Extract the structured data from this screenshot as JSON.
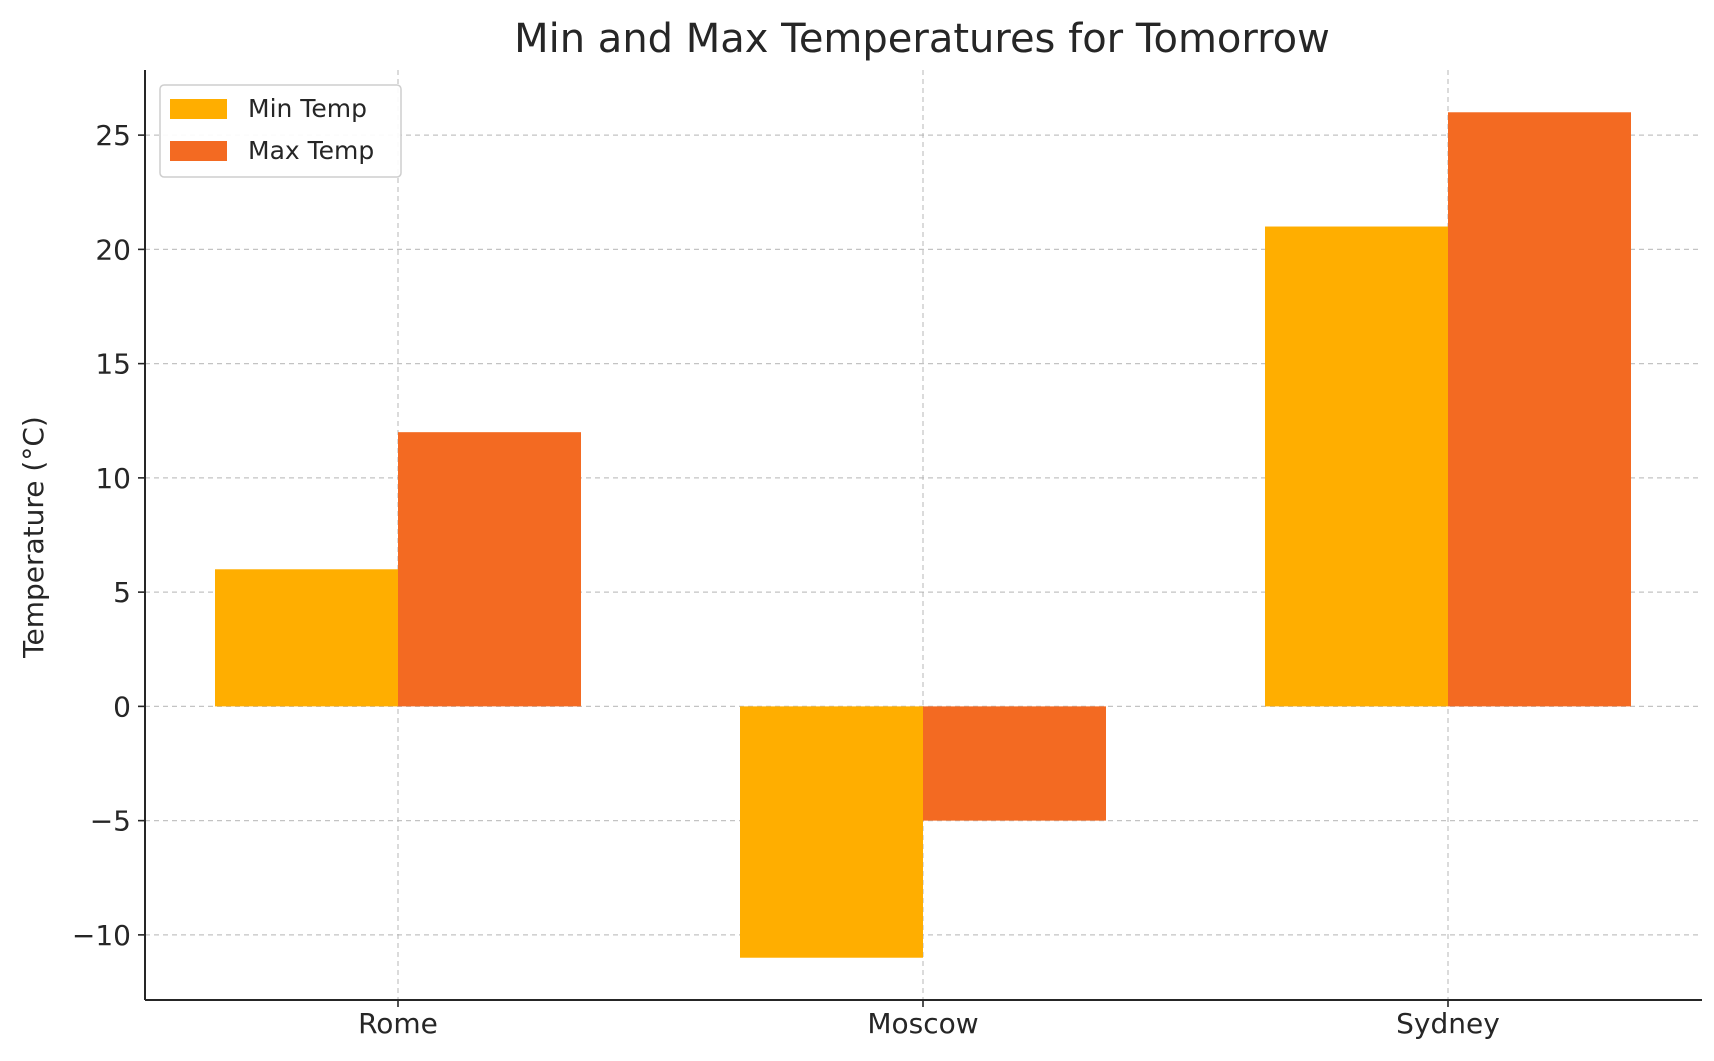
{
  "chart_data": {
    "type": "bar",
    "title": "Min and Max Temperatures for Tomorrow",
    "xlabel": "",
    "ylabel": "Temperature (°C)",
    "categories": [
      "Rome",
      "Moscow",
      "Sydney"
    ],
    "series": [
      {
        "name": "Min Temp",
        "values": [
          6,
          -11,
          21
        ],
        "color": "#FFAE00"
      },
      {
        "name": "Max Temp",
        "values": [
          12,
          -5,
          26
        ],
        "color": "#F36A22"
      }
    ],
    "ylim": [
      -12.85,
      27.85
    ],
    "yticks": [
      -10,
      -5,
      0,
      5,
      10,
      15,
      20,
      25
    ],
    "ytick_labels": [
      "−10",
      "−5",
      "0",
      "5",
      "10",
      "15",
      "20",
      "25"
    ],
    "grid": true,
    "legend": {
      "position": "top-left",
      "entries": [
        "Min Temp",
        "Max Temp"
      ]
    }
  }
}
